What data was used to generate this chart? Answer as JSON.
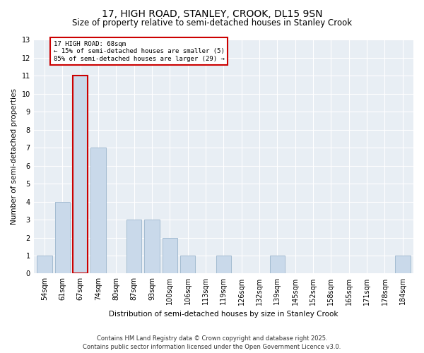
{
  "title": "17, HIGH ROAD, STANLEY, CROOK, DL15 9SN",
  "subtitle": "Size of property relative to semi-detached houses in Stanley Crook",
  "xlabel": "Distribution of semi-detached houses by size in Stanley Crook",
  "ylabel": "Number of semi-detached properties",
  "footer": "Contains HM Land Registry data © Crown copyright and database right 2025.\nContains public sector information licensed under the Open Government Licence v3.0.",
  "categories": [
    "54sqm",
    "61sqm",
    "67sqm",
    "74sqm",
    "80sqm",
    "87sqm",
    "93sqm",
    "100sqm",
    "106sqm",
    "113sqm",
    "119sqm",
    "126sqm",
    "132sqm",
    "139sqm",
    "145sqm",
    "152sqm",
    "158sqm",
    "165sqm",
    "171sqm",
    "178sqm",
    "184sqm"
  ],
  "values": [
    1,
    4,
    11,
    7,
    0,
    3,
    3,
    2,
    1,
    0,
    1,
    0,
    0,
    1,
    0,
    0,
    0,
    0,
    0,
    0,
    1
  ],
  "subject_bar_index": 2,
  "subject_label": "17 HIGH ROAD: 68sqm",
  "annotation_line1": "← 15% of semi-detached houses are smaller (5)",
  "annotation_line2": "85% of semi-detached houses are larger (29) →",
  "bar_color": "#c9d9ea",
  "bar_edge_color": "#9ab5cc",
  "annotation_box_edge_color": "#cc0000",
  "ylim": [
    0,
    13
  ],
  "yticks": [
    0,
    1,
    2,
    3,
    4,
    5,
    6,
    7,
    8,
    9,
    10,
    11,
    12,
    13
  ],
  "background_color": "#ffffff",
  "plot_bg_color": "#e8eef4",
  "grid_color": "#ffffff",
  "title_fontsize": 10,
  "subtitle_fontsize": 8.5,
  "axis_label_fontsize": 7.5,
  "tick_fontsize": 7,
  "footer_fontsize": 6,
  "annotation_fontsize": 6.5
}
